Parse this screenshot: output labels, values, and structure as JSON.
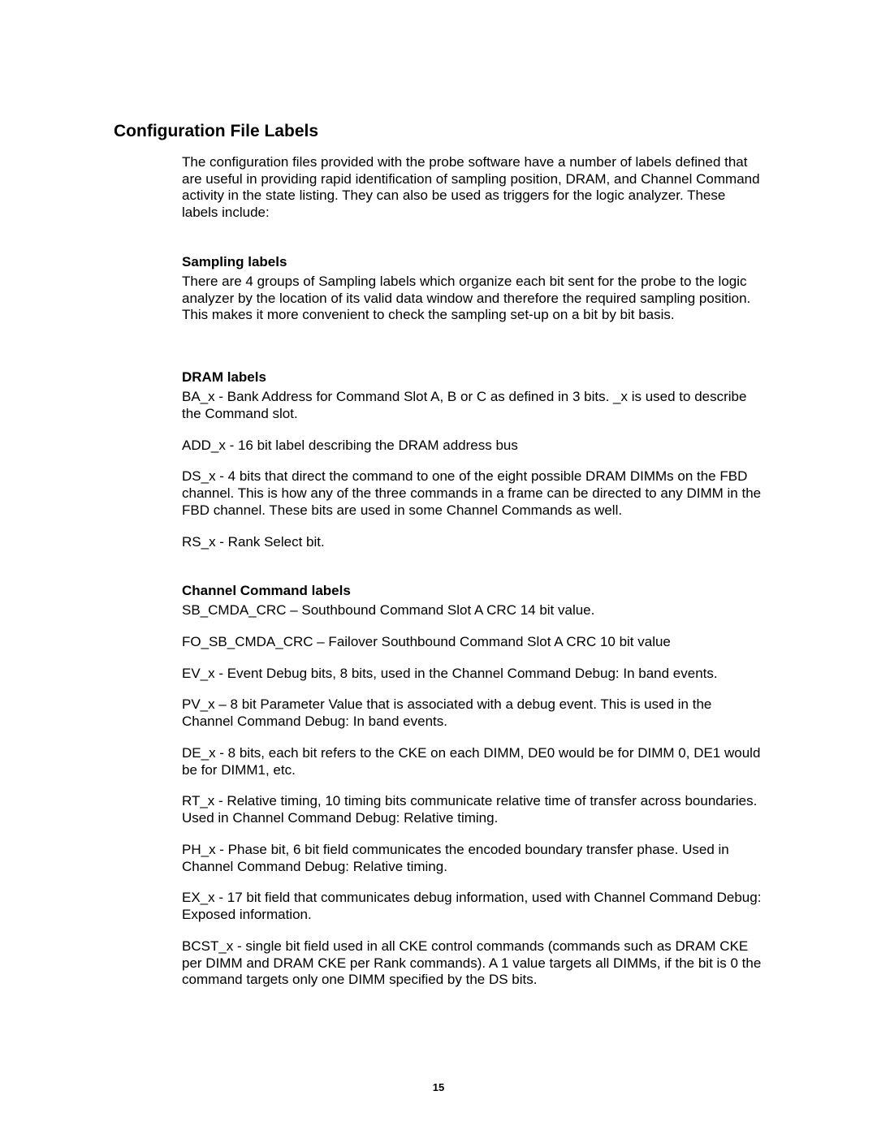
{
  "page_number": "15",
  "title": "Configuration File Labels",
  "intro": "The configuration files provided with the probe software have a number of labels defined that are useful in providing rapid identification of sampling position, DRAM, and Channel Command activity in the state listing. They can also be used as triggers for the logic analyzer. These labels include:",
  "sections": {
    "sampling": {
      "heading": "Sampling labels",
      "body": "There are 4 groups of Sampling labels which organize each bit sent for the probe to the logic analyzer by the location of its valid data window and therefore the required sampling position. This makes it more convenient to check the sampling set-up on a bit by bit basis."
    },
    "dram": {
      "heading": "DRAM labels",
      "p1": "BA_x - Bank Address for Command Slot A, B or C as defined in 3 bits. _x is used to describe the Command slot.",
      "p2": "ADD_x - 16 bit label describing the DRAM address bus",
      "p3": "DS_x - 4 bits that direct the command to one of the eight possible DRAM DIMMs on the FBD channel. This is how any of the three commands in a frame can be directed to any DIMM in the FBD channel. These bits are used in some Channel Commands as well.",
      "p4": "RS_x - Rank Select bit."
    },
    "channel": {
      "heading": "Channel Command labels",
      "p1": "SB_CMDA_CRC – Southbound Command Slot A CRC 14 bit value.",
      "p2": "FO_SB_CMDA_CRC – Failover Southbound Command Slot A CRC 10 bit value",
      "p3": "EV_x - Event Debug bits, 8 bits, used in the Channel Command Debug: In band events.",
      "p4": "PV_x – 8 bit Parameter Value that is associated with a debug event. This is used in the Channel Command Debug: In band events.",
      "p5": "DE_x - 8 bits, each bit refers to the CKE on each DIMM, DE0 would be for DIMM 0, DE1 would be for DIMM1, etc.",
      "p6": "RT_x - Relative timing, 10 timing bits communicate relative time of transfer across boundaries. Used in Channel Command Debug: Relative timing.",
      "p7": "PH_x - Phase bit, 6 bit field communicates the encoded boundary transfer phase. Used in Channel Command Debug: Relative timing.",
      "p8": "EX_x - 17 bit field that communicates debug information, used with Channel Command Debug: Exposed information.",
      "p9": "BCST_x - single bit field used in all CKE control commands (commands such as DRAM CKE per DIMM and DRAM CKE per Rank commands). A 1 value targets all DIMMs, if the bit is 0 the command targets only one DIMM specified by the DS bits."
    }
  }
}
